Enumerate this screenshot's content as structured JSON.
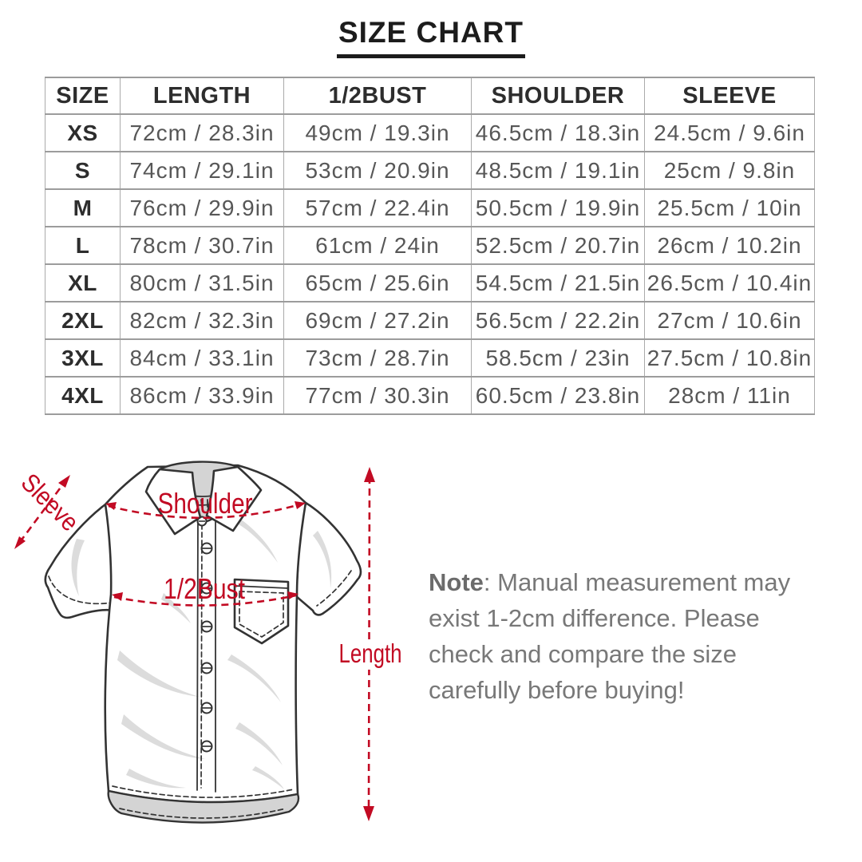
{
  "title": "SIZE CHART",
  "table": {
    "headers": [
      "SIZE",
      "LENGTH",
      "1/2BUST",
      "SHOULDER",
      "SLEEVE"
    ],
    "rows": [
      {
        "size": "XS",
        "cells": [
          "72cm / 28.3in",
          "49cm / 19.3in",
          "46.5cm / 18.3in",
          "24.5cm / 9.6in"
        ]
      },
      {
        "size": "S",
        "cells": [
          "74cm / 29.1in",
          "53cm / 20.9in",
          "48.5cm / 19.1in",
          "25cm / 9.8in"
        ]
      },
      {
        "size": "M",
        "cells": [
          "76cm / 29.9in",
          "57cm / 22.4in",
          "50.5cm / 19.9in",
          "25.5cm / 10in"
        ]
      },
      {
        "size": "L",
        "cells": [
          "78cm / 30.7in",
          "61cm / 24in",
          "52.5cm / 20.7in",
          "26cm / 10.2in"
        ]
      },
      {
        "size": "XL",
        "cells": [
          "80cm / 31.5in",
          "65cm / 25.6in",
          "54.5cm / 21.5in",
          "26.5cm / 10.4in"
        ]
      },
      {
        "size": "2XL",
        "cells": [
          "82cm / 32.3in",
          "69cm / 27.2in",
          "56.5cm / 22.2in",
          "27cm / 10.6in"
        ]
      },
      {
        "size": "3XL",
        "cells": [
          "84cm / 33.1in",
          "73cm / 28.7in",
          "58.5cm / 23in",
          "27.5cm / 10.8in"
        ]
      },
      {
        "size": "4XL",
        "cells": [
          "86cm / 33.9in",
          "77cm / 30.3in",
          "60.5cm / 23.8in",
          "28cm / 11in"
        ]
      }
    ]
  },
  "diagram": {
    "labels": {
      "sleeve": "Sleeve",
      "shoulder": "Shoulder",
      "bust": "1/2Bust",
      "length": "Length"
    },
    "accent_color": "#c20a23"
  },
  "note": {
    "prefix": "Note",
    "lines": [
      ": Manual measurement may",
      "exist 1-2cm difference. Please",
      "check and compare the size",
      "carefully before buying!"
    ]
  }
}
